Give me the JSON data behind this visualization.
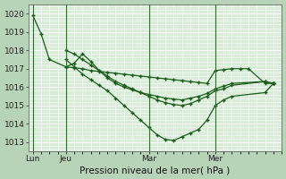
{
  "background_color": "#b8d4b8",
  "plot_bg_color": "#d8ecd8",
  "grid_color": "#ffffff",
  "line_color": "#1a5c1a",
  "ylim": [
    1012.5,
    1020.5
  ],
  "yticks": [
    1013,
    1014,
    1015,
    1016,
    1017,
    1018,
    1019,
    1020
  ],
  "xlabel": "Pression niveau de la mer( hPa )",
  "xlabel_fontsize": 7.5,
  "tick_fontsize": 6.5,
  "xtick_labels": [
    "Lun",
    "Jeu",
    "Mar",
    "Mer"
  ],
  "xtick_positions": [
    0,
    8,
    28,
    44
  ],
  "vlines": [
    0,
    8,
    28,
    44
  ],
  "xlim": [
    -1,
    60
  ],
  "line1_x": [
    0,
    2,
    4,
    8,
    10,
    12,
    14,
    16,
    18,
    20,
    22,
    24,
    26,
    28,
    30,
    32,
    34,
    36,
    38,
    40,
    42,
    44,
    46,
    48,
    50,
    52,
    56,
    58
  ],
  "line1_y": [
    1019.9,
    1018.9,
    1017.5,
    1017.1,
    1017.05,
    1017.0,
    1016.9,
    1016.85,
    1016.8,
    1016.75,
    1016.7,
    1016.65,
    1016.6,
    1016.55,
    1016.5,
    1016.45,
    1016.4,
    1016.35,
    1016.3,
    1016.25,
    1016.2,
    1016.9,
    1016.95,
    1017.0,
    1017.0,
    1017.0,
    1016.2,
    1016.2
  ],
  "line2_x": [
    8,
    10,
    12,
    14,
    16,
    18,
    20,
    22,
    24,
    26,
    28,
    30,
    32,
    34,
    36,
    38,
    40,
    42,
    44,
    46,
    48,
    56,
    58
  ],
  "line2_y": [
    1017.5,
    1017.1,
    1016.7,
    1016.4,
    1016.1,
    1015.8,
    1015.4,
    1015.0,
    1014.6,
    1014.2,
    1013.8,
    1013.4,
    1013.15,
    1013.1,
    1013.3,
    1013.5,
    1013.7,
    1014.2,
    1015.0,
    1015.3,
    1015.5,
    1015.7,
    1016.2
  ],
  "line3_x": [
    8,
    10,
    12,
    14,
    16,
    18,
    20,
    22,
    24,
    26,
    28,
    30,
    32,
    34,
    36,
    38,
    40,
    42,
    44,
    46,
    48,
    56,
    58
  ],
  "line3_y": [
    1018.0,
    1017.8,
    1017.5,
    1017.2,
    1016.9,
    1016.6,
    1016.3,
    1016.1,
    1015.9,
    1015.7,
    1015.5,
    1015.3,
    1015.15,
    1015.05,
    1015.0,
    1015.1,
    1015.3,
    1015.5,
    1015.8,
    1015.9,
    1016.1,
    1016.3,
    1016.2
  ],
  "line4_x": [
    8,
    10,
    12,
    14,
    16,
    18,
    20,
    22,
    24,
    26,
    28,
    30,
    32,
    34,
    36,
    38,
    40,
    42,
    44,
    46,
    48,
    56,
    58
  ],
  "line4_y": [
    1017.1,
    1017.3,
    1017.8,
    1017.4,
    1016.9,
    1016.5,
    1016.2,
    1016.0,
    1015.85,
    1015.7,
    1015.6,
    1015.5,
    1015.4,
    1015.35,
    1015.3,
    1015.4,
    1015.5,
    1015.65,
    1015.9,
    1016.05,
    1016.2,
    1016.3,
    1016.2
  ]
}
